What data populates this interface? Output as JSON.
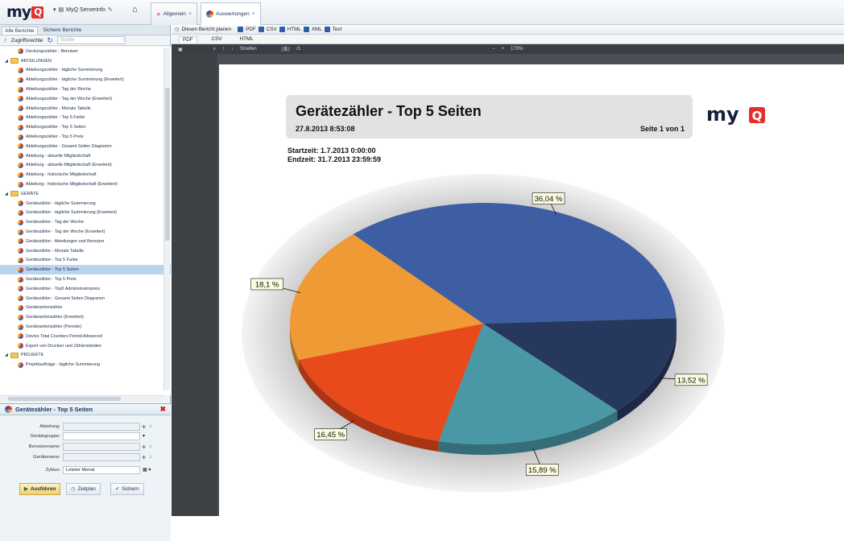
{
  "topbar": {
    "logo": "my",
    "app": "MyQ Serverinfo",
    "tabs": [
      {
        "label": "Allgemein"
      },
      {
        "label": "Auswertungen"
      }
    ]
  },
  "left": {
    "tabs": [
      "Alle Berichte",
      "Sichere Berichte"
    ],
    "tools": {
      "access": "Zugriffsrechte",
      "search_placeholder": "Suche"
    },
    "tree": [
      {
        "level": 1,
        "label": "Deckungszähler - Benutzer",
        "type": "leaf"
      },
      {
        "level": 0,
        "label": "ABTEILUNGEN",
        "type": "folder"
      },
      {
        "level": 1,
        "label": "Abteilungszähler - tägliche Summierung",
        "type": "leaf"
      },
      {
        "level": 1,
        "label": "Abteilungszähler - tägliche Summierung (Erweitert)",
        "type": "leaf"
      },
      {
        "level": 1,
        "label": "Abteilungszähler - Tag der Woche",
        "type": "leaf"
      },
      {
        "level": 1,
        "label": "Abteilungszähler - Tag der Woche (Erweitert)",
        "type": "leaf"
      },
      {
        "level": 1,
        "label": "Abteilungszähler - Monats Tabelle",
        "type": "leaf"
      },
      {
        "level": 1,
        "label": "Abteilungszähler - Top 5 Farbe",
        "type": "leaf"
      },
      {
        "level": 1,
        "label": "Abteilungszähler - Top 5 Seiten",
        "type": "leaf"
      },
      {
        "level": 1,
        "label": "Abteilungszähler - Top 5 Preis",
        "type": "leaf"
      },
      {
        "level": 1,
        "label": "Abteilungszähler - Gesamt Seiten Diagramm",
        "type": "leaf"
      },
      {
        "level": 1,
        "label": "Abteilung - aktuelle Mitgliedschaft",
        "type": "leaf"
      },
      {
        "level": 1,
        "label": "Abteilung - aktuelle Mitgliedschaft (Erweitert)",
        "type": "leaf"
      },
      {
        "level": 1,
        "label": "Abteilung - historische Mitgliedschaft",
        "type": "leaf"
      },
      {
        "level": 1,
        "label": "Abteilung - historische Mitgliedschaft (Erweitert)",
        "type": "leaf"
      },
      {
        "level": 0,
        "label": "GERÄTE",
        "type": "folder"
      },
      {
        "level": 1,
        "label": "Gerätezähler - tägliche Summierung",
        "type": "leaf"
      },
      {
        "level": 1,
        "label": "Gerätezähler - tägliche Summierung (Erweitert)",
        "type": "leaf"
      },
      {
        "level": 1,
        "label": "Gerätezähler - Tag der Woche",
        "type": "leaf"
      },
      {
        "level": 1,
        "label": "Gerätezähler - Tag der Woche (Erweitert)",
        "type": "leaf"
      },
      {
        "level": 1,
        "label": "Gerätezähler - Abteilungen und Benutzer",
        "type": "leaf"
      },
      {
        "level": 1,
        "label": "Gerätezähler - Monats Tabelle",
        "type": "leaf"
      },
      {
        "level": 1,
        "label": "Gerätezähler - Top 5 Farbe",
        "type": "leaf"
      },
      {
        "level": 1,
        "label": "Gerätezähler - Top 5 Seiten",
        "type": "leaf",
        "selected": true
      },
      {
        "level": 1,
        "label": "Gerätezähler - Top 5 Preis",
        "type": "leaf"
      },
      {
        "level": 1,
        "label": "Gerätezähler - Top5 Administratorpreis",
        "type": "leaf"
      },
      {
        "level": 1,
        "label": "Gerätezähler - Gesamt Seiten Diagramm",
        "type": "leaf"
      },
      {
        "level": 1,
        "label": "Geräteseitenzähler",
        "type": "leaf"
      },
      {
        "level": 1,
        "label": "Geräteseitenzähler (Erweitert)",
        "type": "leaf"
      },
      {
        "level": 1,
        "label": "Geräteseitenzähler (Periode)",
        "type": "leaf"
      },
      {
        "level": 1,
        "label": "Device Total Counters Period Advanced",
        "type": "leaf"
      },
      {
        "level": 1,
        "label": "Export von Drucken und Zählerständen",
        "type": "leaf"
      },
      {
        "level": 0,
        "label": "PROJEKTE",
        "type": "folder"
      },
      {
        "level": 1,
        "label": "Projektaufträge - tägliche Summierung",
        "type": "leaf"
      }
    ]
  },
  "panel": {
    "title": "Gerätezähler - Top 5 Seiten",
    "fields": [
      {
        "label": "Abteilung:",
        "value": ""
      },
      {
        "label": "Gerätegruppe:",
        "value": ""
      },
      {
        "label": "Benutzername:",
        "value": ""
      },
      {
        "label": "Gerätename:",
        "value": ""
      },
      {
        "label": "Zyklus:",
        "value": "Letzter Monat"
      }
    ],
    "buttons": {
      "run": "Ausführen",
      "schedule": "Zeitplan",
      "save": "Sichern"
    }
  },
  "mainbar": {
    "items": [
      "Diesen Bericht planen",
      "PDF",
      "CSV",
      "HTML",
      "XML",
      "Text"
    ]
  },
  "format_tabs": [
    "PDF",
    "CSV",
    "HTML"
  ],
  "viewer": {
    "page_label": "Streifen",
    "page": "1",
    "page_total": "/1",
    "zoom": "170%"
  },
  "report": {
    "title": "Gerätezähler - Top 5 Seiten",
    "date": "27.8.2013 8:53:08",
    "page_info": "Seite 1 von 1",
    "start": "Startzeit: 1.7.2013 0:00:00",
    "end": "Endzeit: 31.7.2013 23:59:59",
    "logo": "my"
  },
  "chart_data": {
    "type": "pie",
    "values": [
      36.04,
      13.52,
      15.89,
      16.45,
      18.1
    ],
    "labels": [
      "36,04 %",
      "13,52 %",
      "15,89 %",
      "16,45 %",
      "18,1 %"
    ],
    "colors": [
      "#3e5ea3",
      "#27385e",
      "#4a98a6",
      "#e94a1c",
      "#ef9a35"
    ]
  }
}
